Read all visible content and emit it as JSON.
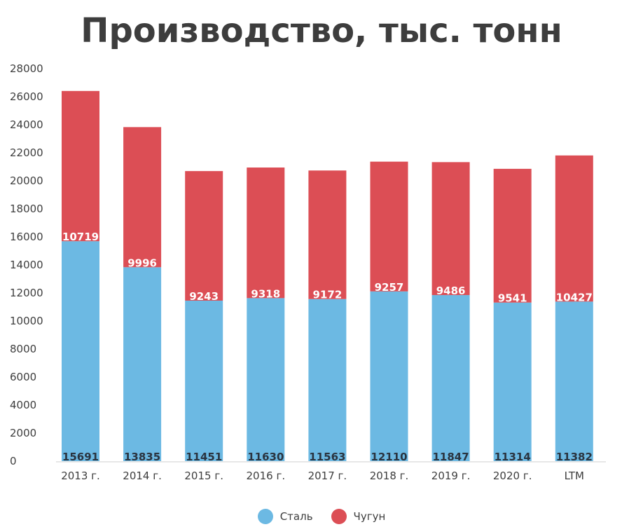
{
  "colors": {
    "steel": "#6cb9e3",
    "iron": "#dc4e55",
    "text": "#3d3d3d"
  },
  "chart_data": {
    "type": "bar",
    "stacked": true,
    "title": "Производство, тыс. тонн",
    "categories": [
      "2013 г.",
      "2014 г.",
      "2015 г.",
      "2016 г.",
      "2017 г.",
      "2018 г.",
      "2019 г.",
      "2020 г.",
      "LTM"
    ],
    "series": [
      {
        "name": "Сталь",
        "color": "#6cb9e3",
        "values": [
          15691,
          13835,
          11451,
          11630,
          11563,
          12110,
          11847,
          11314,
          11382
        ]
      },
      {
        "name": "Чугун",
        "color": "#dc4e55",
        "values": [
          10719,
          9996,
          9243,
          9318,
          9172,
          9257,
          9486,
          9541,
          10427
        ]
      }
    ],
    "ylim": [
      0,
      28000
    ],
    "yticks": [
      "0",
      "2000",
      "4000",
      "6000",
      "8000",
      "10000",
      "12000",
      "14000",
      "16000",
      "18000",
      "20000",
      "22000",
      "24000",
      "26000",
      "28000"
    ],
    "xlabel": "",
    "ylabel": "",
    "grid": false,
    "legend_position": "bottom"
  }
}
